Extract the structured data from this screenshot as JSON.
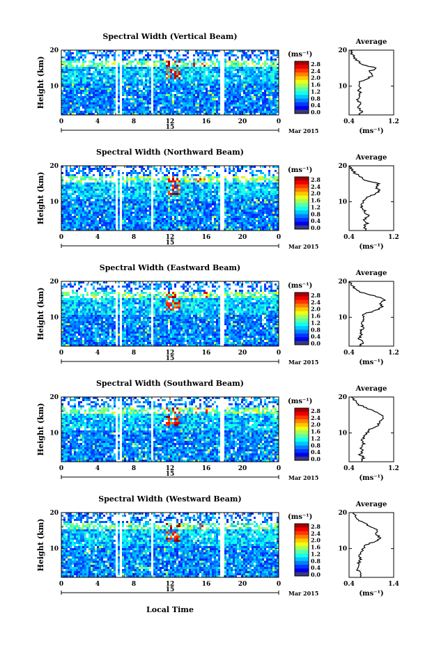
{
  "figure": {
    "month_label": "Mar 2015",
    "day_label": "15",
    "xlabel": "Local Time"
  },
  "chart_data": [
    {
      "type": "heatmap",
      "title": "Spectral Width (Vertical Beam)",
      "ylabel": "Height (km)",
      "xlim": [
        0,
        24
      ],
      "ylim": [
        2,
        20
      ],
      "xticks": [
        "0",
        "4",
        "8",
        "12",
        "16",
        "20",
        "0"
      ],
      "yticks": [
        "20",
        "10"
      ],
      "colorbar": {
        "unit": "(ms⁻¹)",
        "range": [
          0.0,
          2.8
        ],
        "ticks": [
          "2.8",
          "2.4",
          "2.0",
          "1.6",
          "1.2",
          "0.8",
          "0.4",
          "0.0"
        ]
      },
      "gaps_local_time": [
        [
          5.8,
          6.1
        ],
        [
          6.4,
          6.6
        ],
        [
          9.8,
          10.0
        ],
        [
          17.5,
          17.8
        ]
      ],
      "average": {
        "title": "Average",
        "unit": "(ms⁻¹)",
        "xlim": [
          0.4,
          1.2
        ],
        "xticks": [
          "0.4",
          "1.2"
        ],
        "yticks": [
          "20",
          "10"
        ],
        "profile": [
          [
            0.58,
            2
          ],
          [
            0.62,
            3
          ],
          [
            0.56,
            4
          ],
          [
            0.6,
            5
          ],
          [
            0.55,
            6
          ],
          [
            0.58,
            7
          ],
          [
            0.6,
            8
          ],
          [
            0.57,
            9
          ],
          [
            0.6,
            10
          ],
          [
            0.58,
            11
          ],
          [
            0.7,
            12
          ],
          [
            0.85,
            13
          ],
          [
            0.75,
            14
          ],
          [
            0.9,
            15
          ],
          [
            0.65,
            16
          ],
          [
            0.55,
            17
          ],
          [
            0.5,
            18
          ],
          [
            0.45,
            19
          ],
          [
            0.42,
            20
          ]
        ]
      }
    },
    {
      "type": "heatmap",
      "title": "Spectral Width (Northward Beam)",
      "ylabel": "Height (km)",
      "xlim": [
        0,
        24
      ],
      "ylim": [
        2,
        20
      ],
      "xticks": [
        "0",
        "4",
        "8",
        "12",
        "16",
        "20",
        "0"
      ],
      "yticks": [
        "20",
        "10"
      ],
      "colorbar": {
        "unit": "(ms⁻¹)",
        "range": [
          0.0,
          2.8
        ],
        "ticks": [
          "2.8",
          "2.4",
          "2.0",
          "1.6",
          "1.2",
          "0.8",
          "0.4",
          "0.0"
        ]
      },
      "gaps_local_time": [
        [
          5.8,
          6.1
        ],
        [
          6.4,
          6.6
        ],
        [
          9.8,
          10.0
        ],
        [
          17.5,
          17.8
        ]
      ],
      "average": {
        "title": "Average",
        "unit": "(ms⁻¹)",
        "xlim": [
          0.4,
          1.2
        ],
        "xticks": [
          "0.4",
          "1.2"
        ],
        "yticks": [
          "20",
          "10"
        ],
        "profile": [
          [
            0.7,
            2
          ],
          [
            0.66,
            3
          ],
          [
            0.72,
            4
          ],
          [
            0.68,
            5
          ],
          [
            0.74,
            6
          ],
          [
            0.7,
            7
          ],
          [
            0.65,
            8
          ],
          [
            0.62,
            9
          ],
          [
            0.66,
            10
          ],
          [
            0.7,
            11
          ],
          [
            0.85,
            12
          ],
          [
            0.95,
            13
          ],
          [
            0.88,
            14
          ],
          [
            0.92,
            15
          ],
          [
            0.7,
            16
          ],
          [
            0.6,
            17
          ],
          [
            0.5,
            18
          ],
          [
            0.45,
            19
          ],
          [
            0.42,
            20
          ]
        ]
      }
    },
    {
      "type": "heatmap",
      "title": "Spectral Width (Eastward Beam)",
      "ylabel": "Height (km)",
      "xlim": [
        0,
        24
      ],
      "ylim": [
        2,
        20
      ],
      "xticks": [
        "0",
        "4",
        "8",
        "12",
        "16",
        "20",
        "0"
      ],
      "yticks": [
        "20",
        "10"
      ],
      "colorbar": {
        "unit": "(ms⁻¹)",
        "range": [
          0.0,
          2.8
        ],
        "ticks": [
          "2.8",
          "2.4",
          "2.0",
          "1.6",
          "1.2",
          "0.8",
          "0.4",
          "0.0"
        ]
      },
      "gaps_local_time": [
        [
          5.8,
          6.1
        ],
        [
          6.4,
          6.6
        ],
        [
          9.8,
          10.0
        ],
        [
          17.5,
          17.8
        ]
      ],
      "average": {
        "title": "Average",
        "unit": "(ms⁻¹)",
        "xlim": [
          0.4,
          1.2
        ],
        "xticks": [
          "0.4",
          "1.2"
        ],
        "yticks": [
          "20",
          "10"
        ],
        "profile": [
          [
            0.6,
            2
          ],
          [
            0.64,
            3
          ],
          [
            0.58,
            4
          ],
          [
            0.62,
            5
          ],
          [
            0.6,
            6
          ],
          [
            0.64,
            7
          ],
          [
            0.62,
            8
          ],
          [
            0.66,
            9
          ],
          [
            0.64,
            10
          ],
          [
            0.68,
            11
          ],
          [
            0.9,
            12
          ],
          [
            1.0,
            13
          ],
          [
            0.95,
            14
          ],
          [
            1.05,
            15
          ],
          [
            0.85,
            16
          ],
          [
            0.6,
            17
          ],
          [
            0.5,
            18
          ],
          [
            0.45,
            19
          ],
          [
            0.42,
            20
          ]
        ]
      }
    },
    {
      "type": "heatmap",
      "title": "Spectral Width (Southward Beam)",
      "ylabel": "Height (km)",
      "xlim": [
        0,
        24
      ],
      "ylim": [
        2,
        20
      ],
      "xticks": [
        "0",
        "4",
        "8",
        "12",
        "16",
        "20",
        "0"
      ],
      "yticks": [
        "20",
        "10"
      ],
      "colorbar": {
        "unit": "(ms⁻¹)",
        "range": [
          0.0,
          2.8
        ],
        "ticks": [
          "2.8",
          "2.4",
          "2.0",
          "1.6",
          "1.2",
          "0.8",
          "0.4",
          "0.0"
        ]
      },
      "gaps_local_time": [
        [
          5.8,
          6.1
        ],
        [
          6.4,
          6.6
        ],
        [
          9.8,
          10.0
        ],
        [
          17.5,
          17.8
        ]
      ],
      "average": {
        "title": "Average",
        "unit": "(ms⁻¹)",
        "xlim": [
          0.4,
          1.2
        ],
        "xticks": [
          "0.4",
          "1.2"
        ],
        "yticks": [
          "20",
          "10"
        ],
        "profile": [
          [
            0.62,
            2
          ],
          [
            0.66,
            3
          ],
          [
            0.6,
            4
          ],
          [
            0.64,
            5
          ],
          [
            0.62,
            6
          ],
          [
            0.66,
            7
          ],
          [
            0.64,
            8
          ],
          [
            0.68,
            9
          ],
          [
            0.72,
            10
          ],
          [
            0.76,
            11
          ],
          [
            0.92,
            12
          ],
          [
            0.95,
            13
          ],
          [
            1.0,
            14
          ],
          [
            0.98,
            15
          ],
          [
            0.86,
            16
          ],
          [
            0.7,
            17
          ],
          [
            0.55,
            18
          ],
          [
            0.5,
            19
          ],
          [
            0.44,
            20
          ]
        ]
      }
    },
    {
      "type": "heatmap",
      "title": "Spectral Width (Westward Beam)",
      "ylabel": "Height (km)",
      "xlim": [
        0,
        24
      ],
      "ylim": [
        2,
        20
      ],
      "xticks": [
        "0",
        "4",
        "8",
        "12",
        "16",
        "20",
        "0"
      ],
      "yticks": [
        "20",
        "10"
      ],
      "colorbar": {
        "unit": "(ms⁻¹)",
        "range": [
          0.0,
          2.8
        ],
        "ticks": [
          "2.8",
          "2.4",
          "2.0",
          "1.6",
          "1.2",
          "0.8",
          "0.4",
          "0.0"
        ]
      },
      "gaps_local_time": [
        [
          5.8,
          6.1
        ],
        [
          6.4,
          6.6
        ],
        [
          9.8,
          10.0
        ],
        [
          17.5,
          17.8
        ]
      ],
      "average": {
        "title": "Average",
        "unit": "(ms⁻¹)",
        "xlim": [
          0.4,
          1.4
        ],
        "xticks": [
          "0.4",
          "1.4"
        ],
        "yticks": [
          "20",
          "10"
        ],
        "profile": [
          [
            0.62,
            2
          ],
          [
            0.66,
            3
          ],
          [
            0.6,
            4
          ],
          [
            0.64,
            5
          ],
          [
            0.62,
            6
          ],
          [
            0.66,
            7
          ],
          [
            0.64,
            8
          ],
          [
            0.68,
            9
          ],
          [
            0.72,
            10
          ],
          [
            0.76,
            11
          ],
          [
            1.0,
            12
          ],
          [
            1.1,
            13
          ],
          [
            1.0,
            14
          ],
          [
            1.05,
            15
          ],
          [
            0.9,
            16
          ],
          [
            0.75,
            17
          ],
          [
            0.6,
            18
          ],
          [
            0.55,
            19
          ],
          [
            0.5,
            20
          ]
        ]
      }
    }
  ]
}
